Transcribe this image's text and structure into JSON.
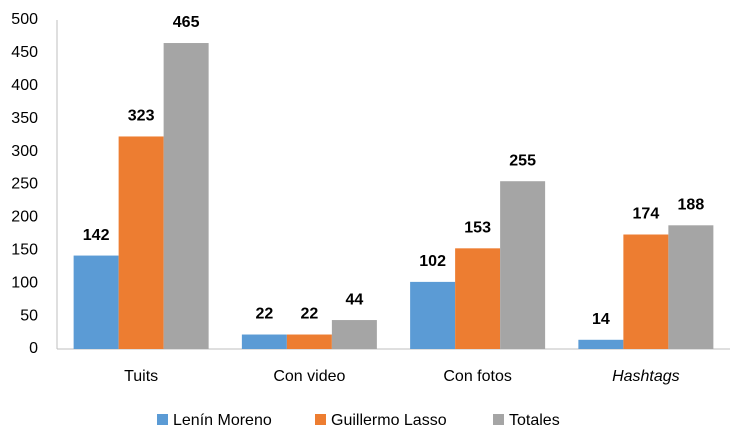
{
  "chart_data": {
    "type": "bar",
    "categories": [
      "Tuits",
      "Con video",
      "Con fotos",
      "Hashtags"
    ],
    "series": [
      {
        "name": "Lenín Moreno",
        "color": "#5b9bd5",
        "values": [
          142,
          22,
          102,
          14
        ]
      },
      {
        "name": "Guillermo Lasso",
        "color": "#ed7d31",
        "values": [
          323,
          22,
          153,
          174
        ]
      },
      {
        "name": "Totales",
        "color": "#a5a5a5",
        "values": [
          465,
          44,
          255,
          188
        ]
      }
    ],
    "ylim": [
      0,
      500
    ],
    "yticks": [
      0,
      50,
      100,
      150,
      200,
      250,
      300,
      350,
      400,
      450,
      500
    ],
    "grid": false,
    "legend": "bottom"
  }
}
